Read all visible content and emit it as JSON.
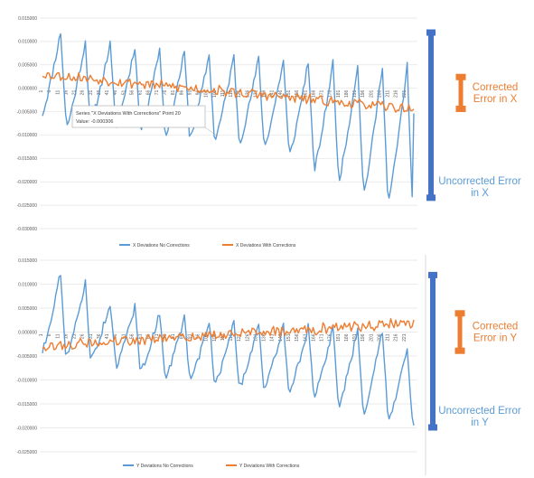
{
  "chart_data": [
    {
      "type": "line",
      "ylim": [
        -0.03,
        0.015
      ],
      "y_ticks": [
        "0.015000",
        "0.010000",
        "0.005000",
        "0.000000",
        "-0.005000",
        "-0.010000",
        "-0.015000",
        "-0.020000",
        "-0.025000",
        "-0.030000"
      ],
      "x_count": 226,
      "x_tick_labels": [
        "1",
        "6",
        "11",
        "16",
        "21",
        "26",
        "31",
        "36",
        "41",
        "46",
        "51",
        "56",
        "61",
        "66",
        "71",
        "76",
        "81",
        "86",
        "91",
        "96",
        "101",
        "106",
        "111",
        "116",
        "121",
        "126",
        "131",
        "136",
        "141",
        "146",
        "151",
        "156",
        "161",
        "166",
        "171",
        "176",
        "181",
        "186",
        "191",
        "196",
        "201",
        "206",
        "211",
        "216",
        "221"
      ],
      "grid": true,
      "legend_position": "bottom",
      "series": [
        {
          "name": "X Deviations No Corrections",
          "color": "#5b9bd5",
          "profile": {
            "period": 15,
            "peaks": [
              0.012,
              0.01,
              0.0095,
              0.009,
              0.0085,
              0.0078,
              0.0072,
              0.0068,
              0.0064,
              0.006,
              0.0058,
              0.0055,
              0.0052,
              0.005,
              0.0048,
              0.004
            ],
            "troughs": [
              -0.0055,
              -0.008,
              -0.0065,
              -0.0078,
              -0.0085,
              -0.0095,
              -0.01,
              -0.0105,
              -0.011,
              -0.012,
              -0.014,
              -0.017,
              -0.019,
              -0.022,
              -0.0235,
              -0.006
            ]
          }
        },
        {
          "name": "X Deviations With Corrections",
          "color": "#ed7d31",
          "profile": {
            "start": 0.003,
            "end": -0.0045,
            "amplitude": 0.0013
          }
        }
      ],
      "tooltip": {
        "line1": "Series \"X Deviations With Corrections\" Point 20",
        "line2": "Value: -0.000306"
      },
      "annotations": [
        {
          "text_lines": [
            "Corrected",
            "Error in X"
          ],
          "color": "#ed7d31",
          "range": [
            -0.0045,
            0.0025
          ]
        },
        {
          "text_lines": [
            "Uncorrected Error",
            "in X"
          ],
          "color": "#4472c4",
          "range": [
            -0.0235,
            0.012
          ]
        }
      ]
    },
    {
      "type": "line",
      "ylim": [
        -0.025,
        0.015
      ],
      "y_ticks": [
        "0.015000",
        "0.010000",
        "0.005000",
        "0.000000",
        "-0.005000",
        "-0.010000",
        "-0.015000",
        "-0.020000",
        "-0.025000"
      ],
      "x_count": 226,
      "x_tick_labels": [
        "1",
        "6",
        "11",
        "16",
        "21",
        "26",
        "31",
        "36",
        "41",
        "46",
        "51",
        "56",
        "61",
        "66",
        "71",
        "76",
        "81",
        "86",
        "91",
        "96",
        "101",
        "106",
        "111",
        "116",
        "121",
        "126",
        "131",
        "136",
        "141",
        "146",
        "151",
        "156",
        "161",
        "166",
        "171",
        "176",
        "181",
        "186",
        "191",
        "196",
        "201",
        "206",
        "211",
        "216",
        "221"
      ],
      "grid": true,
      "legend_position": "bottom",
      "series": [
        {
          "name": "Y Deviations No Corrections",
          "color": "#5b9bd5",
          "profile": {
            "period": 15,
            "peaks": [
              0.0125,
              0.0105,
              0.006,
              0.0055,
              0.004,
              0.003,
              0.0025,
              0.002,
              0.0018,
              0.0015,
              0.0012,
              0.001,
              0.0008,
              0.0005,
              -0.003,
              -0.006
            ],
            "troughs": [
              -0.004,
              -0.005,
              -0.0055,
              -0.007,
              -0.008,
              -0.009,
              -0.01,
              -0.0105,
              -0.011,
              -0.0115,
              -0.012,
              -0.0135,
              -0.015,
              -0.0165,
              -0.018,
              -0.02
            ]
          }
        },
        {
          "name": "Y Deviations With Corrections",
          "color": "#ed7d31",
          "profile": {
            "start": -0.003,
            "end": 0.002,
            "amplitude": 0.0013
          }
        }
      ],
      "annotations": [
        {
          "text_lines": [
            "Corrected",
            "Error in Y"
          ],
          "color": "#ed7d31",
          "range": [
            -0.004,
            0.004
          ]
        },
        {
          "text_lines": [
            "Uncorrected Error",
            "in Y"
          ],
          "color": "#4472c4",
          "range": [
            -0.02,
            0.012
          ]
        }
      ]
    }
  ]
}
